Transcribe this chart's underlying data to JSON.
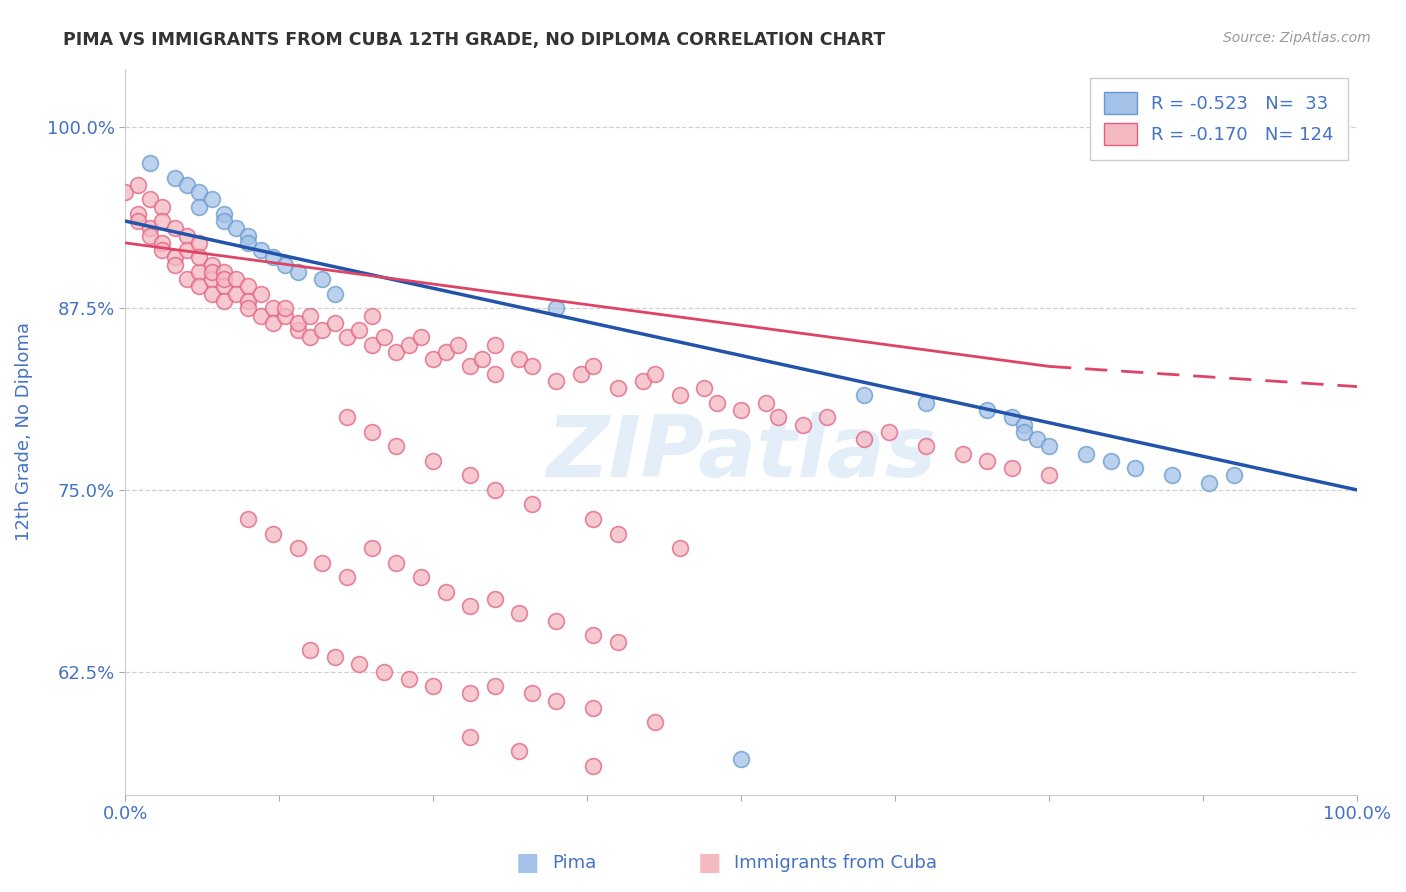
{
  "title": "PIMA VS IMMIGRANTS FROM CUBA 12TH GRADE, NO DIPLOMA CORRELATION CHART",
  "source": "Source: ZipAtlas.com",
  "ylabel": "12th Grade, No Diploma",
  "pima_R": -0.523,
  "pima_N": 33,
  "cuba_R": -0.17,
  "cuba_N": 124,
  "pima_color": "#a4c2e8",
  "pima_edge_color": "#6699cc",
  "cuba_color": "#f4b8c1",
  "cuba_edge_color": "#e06080",
  "pima_line_color": "#2255aa",
  "cuba_line_color": "#dd4466",
  "xlim": [
    0.0,
    1.0
  ],
  "ylim": [
    0.54,
    1.04
  ],
  "yticks": [
    0.625,
    0.75,
    0.875,
    1.0
  ],
  "ytick_labels": [
    "62.5%",
    "75.0%",
    "87.5%",
    "100.0%"
  ],
  "xtick_labels_show": [
    "0.0%",
    "100.0%"
  ],
  "background_color": "#ffffff",
  "watermark_text": "ZIPatlas",
  "pima_x": [
    0.02,
    0.04,
    0.05,
    0.06,
    0.06,
    0.07,
    0.08,
    0.08,
    0.09,
    0.1,
    0.1,
    0.11,
    0.12,
    0.13,
    0.14,
    0.16,
    0.17,
    0.35,
    0.6,
    0.65,
    0.7,
    0.72,
    0.73,
    0.73,
    0.74,
    0.75,
    0.78,
    0.8,
    0.82,
    0.85,
    0.88,
    0.9,
    0.5
  ],
  "pima_y": [
    0.975,
    0.965,
    0.96,
    0.955,
    0.945,
    0.95,
    0.94,
    0.935,
    0.93,
    0.925,
    0.92,
    0.915,
    0.91,
    0.905,
    0.9,
    0.895,
    0.885,
    0.875,
    0.815,
    0.81,
    0.805,
    0.8,
    0.795,
    0.79,
    0.785,
    0.78,
    0.775,
    0.77,
    0.765,
    0.76,
    0.755,
    0.76,
    0.565
  ],
  "cuba_x": [
    0.0,
    0.01,
    0.01,
    0.01,
    0.02,
    0.02,
    0.02,
    0.03,
    0.03,
    0.03,
    0.03,
    0.04,
    0.04,
    0.04,
    0.05,
    0.05,
    0.05,
    0.06,
    0.06,
    0.06,
    0.06,
    0.07,
    0.07,
    0.07,
    0.07,
    0.08,
    0.08,
    0.08,
    0.08,
    0.09,
    0.09,
    0.1,
    0.1,
    0.1,
    0.11,
    0.11,
    0.12,
    0.12,
    0.13,
    0.13,
    0.14,
    0.14,
    0.15,
    0.15,
    0.16,
    0.17,
    0.18,
    0.19,
    0.2,
    0.2,
    0.21,
    0.22,
    0.23,
    0.24,
    0.25,
    0.26,
    0.27,
    0.28,
    0.29,
    0.3,
    0.3,
    0.32,
    0.33,
    0.35,
    0.37,
    0.38,
    0.4,
    0.42,
    0.43,
    0.45,
    0.47,
    0.48,
    0.5,
    0.52,
    0.53,
    0.55,
    0.57,
    0.6,
    0.62,
    0.65,
    0.68,
    0.7,
    0.72,
    0.75,
    0.1,
    0.12,
    0.14,
    0.16,
    0.18,
    0.2,
    0.22,
    0.24,
    0.26,
    0.28,
    0.3,
    0.32,
    0.35,
    0.38,
    0.4,
    0.15,
    0.17,
    0.19,
    0.21,
    0.23,
    0.25,
    0.28,
    0.3,
    0.33,
    0.35,
    0.38,
    0.18,
    0.2,
    0.22,
    0.25,
    0.28,
    0.3,
    0.33,
    0.38,
    0.4,
    0.45,
    0.28,
    0.32,
    0.38,
    0.43
  ],
  "cuba_y": [
    0.955,
    0.96,
    0.94,
    0.935,
    0.95,
    0.93,
    0.925,
    0.945,
    0.92,
    0.935,
    0.915,
    0.93,
    0.91,
    0.905,
    0.925,
    0.895,
    0.915,
    0.92,
    0.9,
    0.89,
    0.91,
    0.905,
    0.895,
    0.9,
    0.885,
    0.9,
    0.89,
    0.895,
    0.88,
    0.895,
    0.885,
    0.89,
    0.88,
    0.875,
    0.885,
    0.87,
    0.875,
    0.865,
    0.87,
    0.875,
    0.86,
    0.865,
    0.87,
    0.855,
    0.86,
    0.865,
    0.855,
    0.86,
    0.85,
    0.87,
    0.855,
    0.845,
    0.85,
    0.855,
    0.84,
    0.845,
    0.85,
    0.835,
    0.84,
    0.83,
    0.85,
    0.84,
    0.835,
    0.825,
    0.83,
    0.835,
    0.82,
    0.825,
    0.83,
    0.815,
    0.82,
    0.81,
    0.805,
    0.81,
    0.8,
    0.795,
    0.8,
    0.785,
    0.79,
    0.78,
    0.775,
    0.77,
    0.765,
    0.76,
    0.73,
    0.72,
    0.71,
    0.7,
    0.69,
    0.71,
    0.7,
    0.69,
    0.68,
    0.67,
    0.675,
    0.665,
    0.66,
    0.65,
    0.645,
    0.64,
    0.635,
    0.63,
    0.625,
    0.62,
    0.615,
    0.61,
    0.615,
    0.61,
    0.605,
    0.6,
    0.8,
    0.79,
    0.78,
    0.77,
    0.76,
    0.75,
    0.74,
    0.73,
    0.72,
    0.71,
    0.58,
    0.57,
    0.56,
    0.59
  ]
}
